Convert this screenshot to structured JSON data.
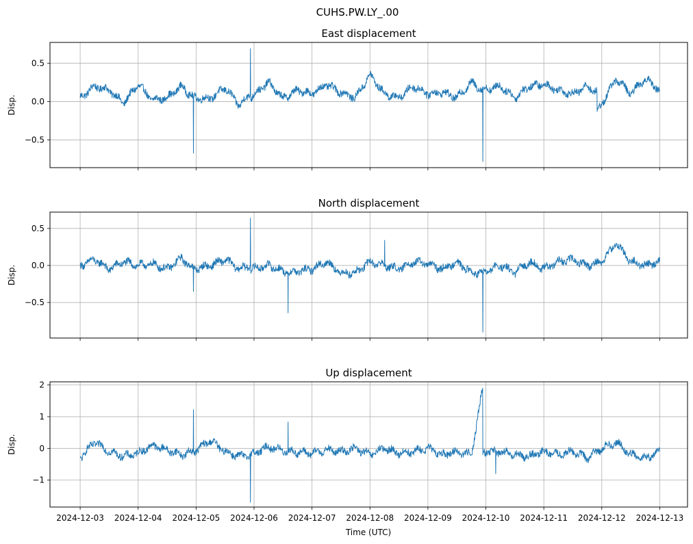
{
  "figure": {
    "suptitle": "CUHS.PW.LY_.00",
    "xlabel": "Time (UTC)"
  },
  "chart_data": [
    {
      "type": "line",
      "title": "East displacement",
      "ylabel": "Disp.",
      "xlim": [
        "2024-12-02T11:30:00",
        "2024-12-13T11:30:00"
      ],
      "ylim": [
        -0.86,
        0.77
      ],
      "yticks": [
        0.5,
        0.0,
        -0.5
      ],
      "ytick_labels": [
        "0.5",
        "0.0",
        "−0.5"
      ],
      "xticks": [
        "2024-12-03",
        "2024-12-04",
        "2024-12-05",
        "2024-12-06",
        "2024-12-07",
        "2024-12-08",
        "2024-12-09",
        "2024-12-10",
        "2024-12-11",
        "2024-12-12",
        "2024-12-13"
      ],
      "show_xtick_labels": false,
      "grid": true,
      "series": [
        {
          "color": "#1f77b4",
          "x": [
            "2024-12-03T00:00",
            "2024-12-03T06:00",
            "2024-12-03T12:00",
            "2024-12-03T18:00",
            "2024-12-04T00:00",
            "2024-12-04T06:00",
            "2024-12-04T12:00",
            "2024-12-04T18:00",
            "2024-12-04T22:50",
            "2024-12-04T22:55",
            "2024-12-04T23:00",
            "2024-12-05T06:00",
            "2024-12-05T12:00",
            "2024-12-05T18:00",
            "2024-12-05T22:25",
            "2024-12-05T22:30",
            "2024-12-05T22:35",
            "2024-12-06T06:00",
            "2024-12-06T12:00",
            "2024-12-06T18:00",
            "2024-12-07T00:00",
            "2024-12-07T06:00",
            "2024-12-07T12:00",
            "2024-12-07T18:00",
            "2024-12-08T00:00",
            "2024-12-08T06:00",
            "2024-12-08T12:00",
            "2024-12-08T18:00",
            "2024-12-09T00:00",
            "2024-12-09T06:00",
            "2024-12-09T12:00",
            "2024-12-09T18:00",
            "2024-12-09T22:40",
            "2024-12-09T22:45",
            "2024-12-09T22:50",
            "2024-12-10T06:00",
            "2024-12-10T12:00",
            "2024-12-10T18:00",
            "2024-12-11T00:00",
            "2024-12-11T06:00",
            "2024-12-11T12:00",
            "2024-12-11T18:00",
            "2024-12-11T22:00",
            "2024-12-11T22:05",
            "2024-12-12T06:00",
            "2024-12-12T12:00",
            "2024-12-12T18:00",
            "2024-12-13T00:00"
          ],
          "y": [
            0.05,
            0.2,
            0.15,
            -0.02,
            0.22,
            0.02,
            0.05,
            0.2,
            0.05,
            -0.67,
            0.05,
            0.04,
            0.18,
            -0.05,
            0.1,
            0.69,
            0.05,
            0.25,
            0.04,
            0.15,
            0.1,
            0.22,
            0.12,
            0.05,
            0.35,
            0.1,
            0.05,
            0.2,
            0.1,
            0.12,
            0.05,
            0.25,
            0.15,
            -0.78,
            0.15,
            0.2,
            0.05,
            0.2,
            0.22,
            0.15,
            0.1,
            0.2,
            0.12,
            -0.13,
            0.3,
            0.1,
            0.3,
            0.15
          ]
        }
      ]
    },
    {
      "type": "line",
      "title": "North displacement",
      "ylabel": "Disp.",
      "xlim": [
        "2024-12-02T11:30:00",
        "2024-12-13T11:30:00"
      ],
      "ylim": [
        -0.98,
        0.72
      ],
      "yticks": [
        0.5,
        0.0,
        -0.5
      ],
      "ytick_labels": [
        "0.5",
        "0.0",
        "−0.5"
      ],
      "xticks": [
        "2024-12-03",
        "2024-12-04",
        "2024-12-05",
        "2024-12-06",
        "2024-12-07",
        "2024-12-08",
        "2024-12-09",
        "2024-12-10",
        "2024-12-11",
        "2024-12-12",
        "2024-12-13"
      ],
      "show_xtick_labels": false,
      "grid": true,
      "series": [
        {
          "color": "#1f77b4",
          "x": [
            "2024-12-03T00:00",
            "2024-12-03T06:00",
            "2024-12-03T12:00",
            "2024-12-03T18:00",
            "2024-12-04T00:00",
            "2024-12-04T06:00",
            "2024-12-04T12:00",
            "2024-12-04T18:00",
            "2024-12-04T22:50",
            "2024-12-04T22:55",
            "2024-12-04T23:00",
            "2024-12-05T06:00",
            "2024-12-05T12:00",
            "2024-12-05T18:00",
            "2024-12-05T22:25",
            "2024-12-05T22:30",
            "2024-12-05T22:35",
            "2024-12-06T06:00",
            "2024-12-06T14:00",
            "2024-12-06T14:05",
            "2024-12-06T14:10",
            "2024-12-07T00:00",
            "2024-12-07T06:00",
            "2024-12-07T12:00",
            "2024-12-07T18:00",
            "2024-12-08T00:00",
            "2024-12-08T06:00",
            "2024-12-08T06:05",
            "2024-12-08T06:10",
            "2024-12-08T12:00",
            "2024-12-08T18:00",
            "2024-12-09T00:00",
            "2024-12-09T06:00",
            "2024-12-09T12:00",
            "2024-12-09T18:00",
            "2024-12-09T22:40",
            "2024-12-09T22:45",
            "2024-12-09T22:50",
            "2024-12-10T06:00",
            "2024-12-10T12:00",
            "2024-12-10T18:00",
            "2024-12-11T00:00",
            "2024-12-11T06:00",
            "2024-12-11T12:00",
            "2024-12-11T18:00",
            "2024-12-12T00:00",
            "2024-12-12T06:00",
            "2024-12-12T12:00",
            "2024-12-12T18:00",
            "2024-12-13T00:00"
          ],
          "y": [
            0.0,
            0.08,
            -0.05,
            0.05,
            0.0,
            0.02,
            -0.05,
            0.1,
            -0.05,
            -0.35,
            -0.05,
            0.0,
            0.08,
            -0.05,
            0.0,
            0.64,
            -0.05,
            0.0,
            -0.1,
            -0.64,
            -0.1,
            -0.05,
            0.05,
            -0.1,
            -0.1,
            0.05,
            0.0,
            0.34,
            0.0,
            -0.05,
            0.05,
            0.02,
            -0.05,
            0.05,
            -0.1,
            -0.1,
            -0.9,
            -0.1,
            0.0,
            -0.1,
            0.05,
            -0.05,
            0.05,
            0.08,
            0.0,
            0.05,
            0.3,
            0.05,
            0.0,
            0.05
          ]
        }
      ]
    },
    {
      "type": "line",
      "title": "Up displacement",
      "ylabel": "Disp.",
      "xlim": [
        "2024-12-02T11:30:00",
        "2024-12-13T11:30:00"
      ],
      "ylim": [
        -1.85,
        2.1
      ],
      "yticks": [
        2,
        1,
        0,
        -1
      ],
      "ytick_labels": [
        "2",
        "1",
        "0",
        "−1"
      ],
      "xticks": [
        "2024-12-03",
        "2024-12-04",
        "2024-12-05",
        "2024-12-06",
        "2024-12-07",
        "2024-12-08",
        "2024-12-09",
        "2024-12-10",
        "2024-12-11",
        "2024-12-12",
        "2024-12-13"
      ],
      "show_xtick_labels": true,
      "grid": true,
      "series": [
        {
          "color": "#1f77b4",
          "x": [
            "2024-12-03T00:00",
            "2024-12-03T06:00",
            "2024-12-03T12:00",
            "2024-12-03T18:00",
            "2024-12-04T00:00",
            "2024-12-04T06:00",
            "2024-12-04T12:00",
            "2024-12-04T18:00",
            "2024-12-04T22:50",
            "2024-12-04T22:55",
            "2024-12-04T23:00",
            "2024-12-05T06:00",
            "2024-12-05T12:00",
            "2024-12-05T18:00",
            "2024-12-05T22:25",
            "2024-12-05T22:30",
            "2024-12-05T22:35",
            "2024-12-06T06:00",
            "2024-12-06T14:00",
            "2024-12-06T14:05",
            "2024-12-06T14:10",
            "2024-12-07T00:00",
            "2024-12-07T06:00",
            "2024-12-07T12:00",
            "2024-12-07T18:00",
            "2024-12-08T00:00",
            "2024-12-08T06:00",
            "2024-12-08T12:00",
            "2024-12-08T18:00",
            "2024-12-09T00:00",
            "2024-12-09T06:00",
            "2024-12-09T12:00",
            "2024-12-09T18:00",
            "2024-12-09T22:40",
            "2024-12-09T22:45",
            "2024-12-09T22:50",
            "2024-12-10T04:00",
            "2024-12-10T04:05",
            "2024-12-10T04:10",
            "2024-12-10T12:00",
            "2024-12-10T18:00",
            "2024-12-11T00:00",
            "2024-12-11T06:00",
            "2024-12-11T12:00",
            "2024-12-11T18:00",
            "2024-12-12T00:00",
            "2024-12-12T06:00",
            "2024-12-12T12:00",
            "2024-12-12T18:00",
            "2024-12-13T00:00"
          ],
          "y": [
            -0.3,
            0.2,
            -0.1,
            -0.25,
            -0.15,
            0.1,
            -0.05,
            -0.2,
            -0.1,
            1.22,
            -0.1,
            0.25,
            -0.1,
            -0.25,
            -0.2,
            -1.7,
            -0.2,
            0.05,
            -0.1,
            0.83,
            -0.1,
            -0.15,
            -0.05,
            -0.1,
            0.0,
            -0.2,
            0.0,
            -0.15,
            -0.1,
            0.0,
            -0.2,
            -0.1,
            -0.2,
            1.9,
            -0.2,
            -0.1,
            -0.1,
            -0.8,
            -0.1,
            -0.2,
            -0.25,
            -0.1,
            -0.2,
            -0.1,
            -0.3,
            0.0,
            0.2,
            -0.2,
            -0.3,
            -0.1
          ]
        }
      ]
    }
  ]
}
